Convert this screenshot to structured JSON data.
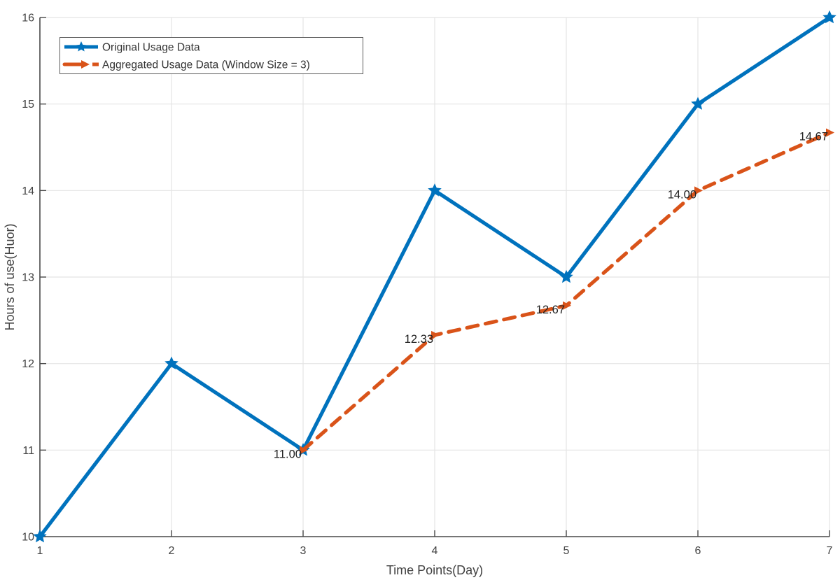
{
  "chart_data": {
    "type": "line",
    "title": "",
    "xlabel": "Time Points(Day)",
    "ylabel": "Hours of use(Huor)",
    "xlim": [
      1,
      7
    ],
    "ylim": [
      10,
      16
    ],
    "xticks": [
      1,
      2,
      3,
      4,
      5,
      6,
      7
    ],
    "xtick_labels": [
      "1",
      "2",
      "3",
      "4",
      "5",
      "6",
      "7"
    ],
    "yticks": [
      10,
      11,
      12,
      13,
      14,
      15,
      16
    ],
    "ytick_labels": [
      "10",
      "11",
      "12",
      "13",
      "14",
      "15",
      "16"
    ],
    "grid": true,
    "legend": {
      "position": "top-left",
      "entries": [
        "Original Usage Data",
        "Aggregated Usage Data (Window Size = 3)"
      ]
    },
    "series": [
      {
        "name": "Original Usage Data",
        "color": "#0072BD",
        "line_style": "solid",
        "marker": "star",
        "x": [
          1,
          2,
          3,
          4,
          5,
          6,
          7
        ],
        "y": [
          10,
          12,
          11,
          14,
          13,
          15,
          16
        ]
      },
      {
        "name": "Aggregated Usage Data (Window Size = 3)",
        "color": "#D95319",
        "line_style": "dashed",
        "marker": "triangle-right",
        "x": [
          3,
          4,
          5,
          6,
          7
        ],
        "y": [
          11,
          12.33,
          12.67,
          14,
          14.67
        ],
        "point_labels": [
          "11.00",
          "12.33",
          "12.67",
          "14.00",
          "14.67"
        ]
      }
    ],
    "colors": {
      "background": "#ffffff",
      "grid": "#e4e4e4",
      "axis": "#4a4a4a",
      "tick_label": "#424242",
      "axis_label": "#424242",
      "data_label": "#212121",
      "legend_border": "#5a5a5a",
      "legend_text": "#333333"
    }
  }
}
